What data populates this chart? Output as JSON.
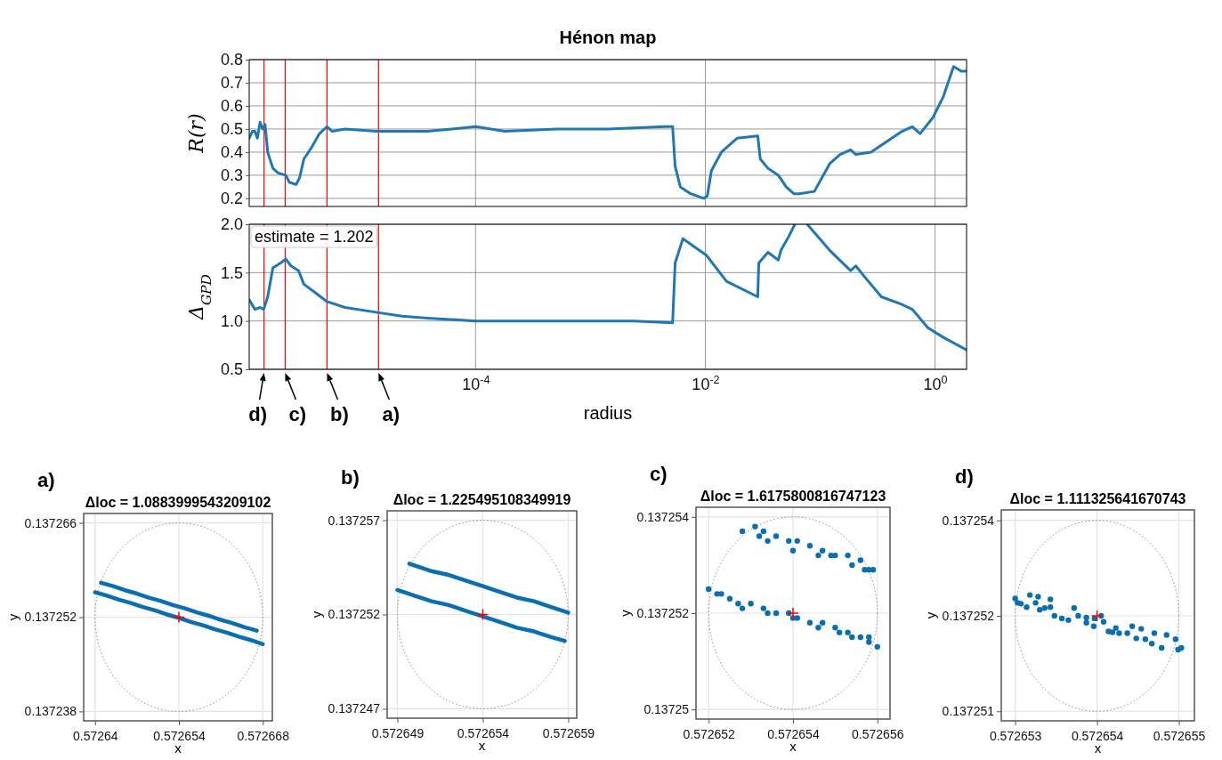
{
  "chart_data": [
    {
      "type": "line",
      "title": "Hénon map",
      "ylabel": "R(r)",
      "log": "x",
      "xlim": [
        1.07e-06,
        1.88
      ],
      "ylim": [
        0.165,
        0.8
      ],
      "xticks": [
        {
          "value": 0.0001,
          "label": null
        },
        {
          "value": 0.01,
          "label": null
        },
        {
          "value": 1,
          "label": null
        }
      ],
      "yticks": [
        0.2,
        0.3,
        0.4,
        0.5,
        0.6,
        0.7,
        0.8
      ],
      "grid": true,
      "tick_labels": "y",
      "ref_lines": [
        {
          "axis": "x",
          "value": 1.44e-06,
          "color": "#ff0000"
        },
        {
          "axis": "x",
          "value": 2.2e-06,
          "color": "#ff0000"
        },
        {
          "axis": "x",
          "value": 5.09e-06,
          "color": "#ff0000"
        },
        {
          "axis": "x",
          "value": 1.43e-05,
          "color": "#ff0000"
        }
      ],
      "x": [
        1.07e-06,
        1.14e-06,
        1.2e-06,
        1.26e-06,
        1.33e-06,
        1.4e-06,
        1.47e-06,
        1.55e-06,
        1.72e-06,
        1.91e-06,
        2.23e-06,
        2.39e-06,
        2.74e-06,
        2.94e-06,
        3.2e-06,
        3.73e-06,
        4.37e-06,
        5.09e-06,
        5.65e-06,
        7.31e-06,
        1.36e-05,
        2.28e-05,
        3.82e-05,
        0.0001,
        0.00018,
        0.000507,
        0.00143,
        0.00445,
        0.00519,
        0.00546,
        0.00605,
        0.00745,
        0.00964,
        0.0104,
        0.0113,
        0.0138,
        0.0189,
        0.0286,
        0.0301,
        0.0351,
        0.0432,
        0.0505,
        0.0589,
        0.0653,
        0.0889,
        0.121,
        0.149,
        0.184,
        0.204,
        0.277,
        0.42,
        0.516,
        0.634,
        0.741,
        0.959,
        1.18,
        1.45,
        1.69,
        1.88
      ],
      "series": [
        {
          "color": "#1f77b4",
          "values": [
            0.46,
            0.49,
            0.49,
            0.46,
            0.53,
            0.5,
            0.52,
            0.4,
            0.33,
            0.31,
            0.3,
            0.27,
            0.26,
            0.29,
            0.37,
            0.42,
            0.48,
            0.51,
            0.49,
            0.5,
            0.49,
            0.49,
            0.49,
            0.51,
            0.49,
            0.5,
            0.5,
            0.51,
            0.51,
            0.34,
            0.25,
            0.22,
            0.2,
            0.21,
            0.32,
            0.4,
            0.46,
            0.47,
            0.37,
            0.33,
            0.3,
            0.25,
            0.22,
            0.22,
            0.23,
            0.35,
            0.39,
            0.41,
            0.39,
            0.4,
            0.46,
            0.49,
            0.51,
            0.48,
            0.55,
            0.64,
            0.77,
            0.75,
            0.75
          ]
        }
      ]
    },
    {
      "type": "line",
      "ylabel": "Δ$_{GPD}$",
      "xlabel": "radius",
      "log": "x",
      "xlim": [
        1.07e-06,
        1.88
      ],
      "ylim": [
        0.5,
        2.0
      ],
      "xticks": [
        {
          "value": 0.0001,
          "label": "10$^{-4}$"
        },
        {
          "value": 0.01,
          "label": "10$^{-2}$"
        },
        {
          "value": 1,
          "label": "10$^{0}$"
        }
      ],
      "yticks": [
        0.5,
        {
          "value": 1,
          "label": "1.0"
        },
        1.5,
        {
          "value": 2,
          "label": "2.0"
        }
      ],
      "grid": true,
      "ref_lines": [
        {
          "axis": "x",
          "value": 1.44e-06,
          "color": "#ff0000"
        },
        {
          "axis": "x",
          "value": 2.2e-06,
          "color": "#ff0000"
        },
        {
          "axis": "x",
          "value": 5.09e-06,
          "color": "#ff0000"
        },
        {
          "axis": "x",
          "value": 1.43e-05,
          "color": "#ff0000"
        }
      ],
      "annotations": [
        "estimate = 1.202",
        {
          "text": "d)",
          "x": 1.44e-06,
          "y": 0.5
        },
        {
          "text": "c)",
          "x": 2.2e-06,
          "y": 0.5
        },
        {
          "text": "b)",
          "x": 5.09e-06,
          "y": 0.5
        },
        {
          "text": "a)",
          "x": 1.43e-05,
          "y": 0.5
        }
      ],
      "x": [
        1.07e-06,
        1.2e-06,
        1.33e-06,
        1.43e-06,
        1.55e-06,
        1.72e-06,
        2.01e-06,
        2.23e-06,
        2.47e-06,
        2.88e-06,
        3.2e-06,
        3.94e-06,
        5.09e-06,
        7.31e-06,
        1.36e-05,
        2.28e-05,
        3.82e-05,
        0.0001,
        0.000302,
        0.000849,
        0.00239,
        0.00519,
        0.00546,
        0.00638,
        0.0102,
        0.0153,
        0.0286,
        0.0292,
        0.0351,
        0.0432,
        0.0455,
        0.0531,
        0.0601,
        0.0681,
        0.0771,
        0.121,
        0.184,
        0.204,
        0.25,
        0.341,
        0.516,
        0.634,
        0.865,
        1.18,
        1.88
      ],
      "series": [
        {
          "color": "#1f77b4",
          "values": [
            1.22,
            1.12,
            1.14,
            1.12,
            1.25,
            1.55,
            1.6,
            1.64,
            1.57,
            1.52,
            1.38,
            1.3,
            1.2,
            1.14,
            1.09,
            1.05,
            1.03,
            1.0,
            1.0,
            1.0,
            1.0,
            0.98,
            1.6,
            1.85,
            1.68,
            1.41,
            1.25,
            1.6,
            1.71,
            1.63,
            1.73,
            1.87,
            2.0,
            null,
            2.0,
            1.73,
            1.52,
            1.57,
            1.44,
            1.25,
            1.17,
            1.12,
            0.93,
            0.83,
            0.7
          ]
        }
      ]
    },
    {
      "type": "scatter",
      "title": "Δloc = 1.0883999543209102",
      "xlabel": "x",
      "ylabel": "y",
      "xlim": [
        0.5726381,
        0.5726696
      ],
      "ylim": [
        0.1372366,
        0.1372674
      ],
      "xticks": [
        0.57264,
        0.572654,
        0.572668
      ],
      "yticks": [
        0.137238,
        0.137252,
        0.137266
      ],
      "grid": true,
      "annotations": [
        "a)"
      ],
      "series": [
        {
          "type": "line",
          "color": "#0a6fb0",
          "x": [
            0.57264,
            0.572642,
            0.572644,
            0.572646,
            0.572648,
            0.57265,
            0.572652,
            0.572654,
            0.572656,
            0.572658,
            0.57266,
            0.572662,
            0.572664,
            0.572666,
            0.572668
          ],
          "values": [
            0.1372557,
            0.1372552,
            0.1372546,
            0.1372541,
            0.1372535,
            0.137253,
            0.1372524,
            0.1372519,
            0.1372513,
            0.1372508,
            0.1372502,
            0.1372497,
            0.1372491,
            0.1372486,
            0.137248
          ]
        },
        {
          "type": "line",
          "color": "#0a6fb0",
          "x": [
            0.572641,
            0.572643,
            0.572645,
            0.572647,
            0.572649,
            0.572651,
            0.572653,
            0.572655,
            0.572657,
            0.572659,
            0.572661,
            0.572663,
            0.572665,
            0.572667
          ],
          "values": [
            0.1372571,
            0.1372566,
            0.137256,
            0.1372555,
            0.1372549,
            0.1372544,
            0.1372538,
            0.1372533,
            0.1372527,
            0.1372522,
            0.1372516,
            0.1372511,
            0.1372505,
            0.13725
          ]
        },
        {
          "type": "scatter",
          "marker": "cross",
          "color": "#ff0000",
          "x": [
            0.572654
          ],
          "values": [
            0.137252
          ]
        }
      ]
    },
    {
      "type": "scatter",
      "title": "Δloc = 1.225495108349919",
      "xlabel": "x",
      "ylabel": "y",
      "xlim": [
        0.5726484,
        0.5726595
      ],
      "ylim": [
        0.1372465,
        0.1372575
      ],
      "xticks": [
        0.572649,
        0.572654,
        0.572659
      ],
      "yticks": [
        0.137247,
        0.137252,
        0.137257
      ],
      "grid": true,
      "annotations": [
        "b)"
      ],
      "series": [
        {
          "type": "line",
          "color": "#0a6fb0",
          "x": [
            0.572649,
            0.57265,
            0.572651,
            0.572652,
            0.572653,
            0.572654,
            0.572655,
            0.572656,
            0.572657,
            0.572658,
            0.5726588
          ],
          "values": [
            0.1372533,
            0.137253,
            0.1372527,
            0.1372525,
            0.1372522,
            0.1372519,
            0.1372516,
            0.1372513,
            0.1372511,
            0.1372508,
            0.1372506
          ]
        },
        {
          "type": "line",
          "color": "#0a6fb0",
          "x": [
            0.5726497,
            0.57265,
            0.572651,
            0.572652,
            0.572653,
            0.572654,
            0.572655,
            0.572656,
            0.572657,
            0.572658,
            0.572659
          ],
          "values": [
            0.1372547,
            0.1372546,
            0.1372543,
            0.1372541,
            0.1372538,
            0.1372535,
            0.1372532,
            0.1372529,
            0.1372527,
            0.1372524,
            0.1372521
          ]
        },
        {
          "type": "scatter",
          "marker": "cross",
          "color": "#ff0000",
          "x": [
            0.572654
          ],
          "values": [
            0.137252
          ]
        }
      ]
    },
    {
      "type": "scatter",
      "title": "Δloc = 1.6175800816747123",
      "xlabel": "x",
      "ylabel": "y",
      "xlim": [
        0.5726517,
        0.5726563
      ],
      "ylim": [
        0.1372498,
        0.1372542
      ],
      "xticks": [
        0.572652,
        0.572654,
        0.572656
      ],
      "yticks": [
        0.13725,
        0.137252,
        0.137254
      ],
      "grid": true,
      "annotations": [
        "c)"
      ],
      "series": [
        {
          "marker": "circle",
          "color": "#0a6fb0",
          "x": [
            0.5726528,
            0.5726531,
            0.5726533,
            0.5726536,
            0.5726539,
            0.5726541,
            0.5726544,
            0.5726547,
            0.572655,
            0.5726553,
            0.5726556,
            0.5726558,
            0.5726559,
            0.5726532,
            0.5726534,
            0.572654,
            0.5726546,
            0.5726549,
            0.5726554,
            0.5726557,
            0.572652,
            0.5726522,
            0.5726525,
            0.5726527,
            0.572653,
            0.5726533,
            0.5726536,
            0.5726539,
            0.5726541,
            0.5726544,
            0.5726547,
            0.572655,
            0.5726553,
            0.5726556,
            0.5726558,
            0.572656,
            0.5726523,
            0.5726528,
            0.5726534,
            0.572654,
            0.5726546,
            0.5726551,
            0.5726554,
            0.5726558
          ],
          "values": [
            0.1372537,
            0.1372538,
            0.1372537,
            0.1372536,
            0.1372535,
            0.1372535,
            0.1372534,
            0.1372533,
            0.1372532,
            0.1372532,
            0.1372531,
            0.1372529,
            0.1372529,
            0.1372536,
            0.1372535,
            0.1372533,
            0.1372532,
            0.1372532,
            0.137253,
            0.1372529,
            0.1372525,
            0.1372524,
            0.1372523,
            0.1372522,
            0.1372522,
            0.1372521,
            0.137252,
            0.137252,
            0.1372519,
            0.1372518,
            0.1372518,
            0.1372517,
            0.1372516,
            0.1372515,
            0.1372514,
            0.1372513,
            0.1372524,
            0.1372521,
            0.137252,
            0.1372519,
            0.1372517,
            0.1372516,
            0.1372515,
            0.1372515
          ]
        },
        {
          "type": "scatter",
          "marker": "cross",
          "color": "#ff0000",
          "x": [
            0.572654
          ],
          "values": [
            0.137252
          ]
        }
      ]
    },
    {
      "type": "scatter",
      "title": "Δloc = 1.111325641670743",
      "xlabel": "x",
      "ylabel": "y",
      "xlim": [
        0.57265283,
        0.57265519
      ],
      "ylim": [
        0.13725119,
        0.13725362
      ],
      "xticks": [
        0.572653,
        0.572654,
        0.572655
      ],
      "yticks": [
        {
          "value": 0.1372535,
          "label": "0.137254"
        },
        {
          "value": 0.1372524,
          "label": "0.137252"
        },
        {
          "value": 0.1372513,
          "label": "0.137251"
        }
      ],
      "grid": true,
      "annotations": [
        "d)"
      ],
      "series": [
        {
          "marker": "circle",
          "color": "#0a6fb0",
          "x": [
            0.572653,
            0.57265303,
            0.57265307,
            0.57265314,
            0.57265318,
            0.57265325,
            0.5726533,
            0.57265336,
            0.57265343,
            0.57265348,
            0.57265357,
            0.57265365,
            0.57265372,
            0.57265377,
            0.57265387,
            0.57265396,
            0.57265397,
            0.57265405,
            0.57265408,
            0.57265414,
            0.57265419,
            0.57265427,
            0.57265437,
            0.57265443,
            0.57265448,
            0.57265459,
            0.57265467,
            0.57265479,
            0.57265496,
            0.57265499,
            0.57265503,
            0.57265454,
            0.5726547,
            0.57265485,
            0.57265328,
            0.57265343,
            0.57265387,
            0.57265423
          ],
          "values": [
            0.1372526,
            0.13725255,
            0.13725254,
            0.1372525,
            0.13725264,
            0.13725255,
            0.13725247,
            0.13725249,
            0.1372525,
            0.1372524,
            0.13725237,
            0.13725235,
            0.13725249,
            0.1372524,
            0.13725232,
            0.13725228,
            0.13725237,
            0.1372524,
            0.13725233,
            0.13725222,
            0.13725221,
            0.1372522,
            0.1372522,
            0.13725228,
            0.13725214,
            0.13725213,
            0.13725208,
            0.13725203,
            0.13725213,
            0.13725201,
            0.13725203,
            0.13725225,
            0.1372522,
            0.13725218,
            0.13725262,
            0.13725259,
            0.13725238,
            0.13725226
          ]
        },
        {
          "type": "scatter",
          "marker": "cross",
          "color": "#ff0000",
          "x": [
            0.572654
          ],
          "values": [
            0.1372524
          ]
        }
      ]
    }
  ]
}
